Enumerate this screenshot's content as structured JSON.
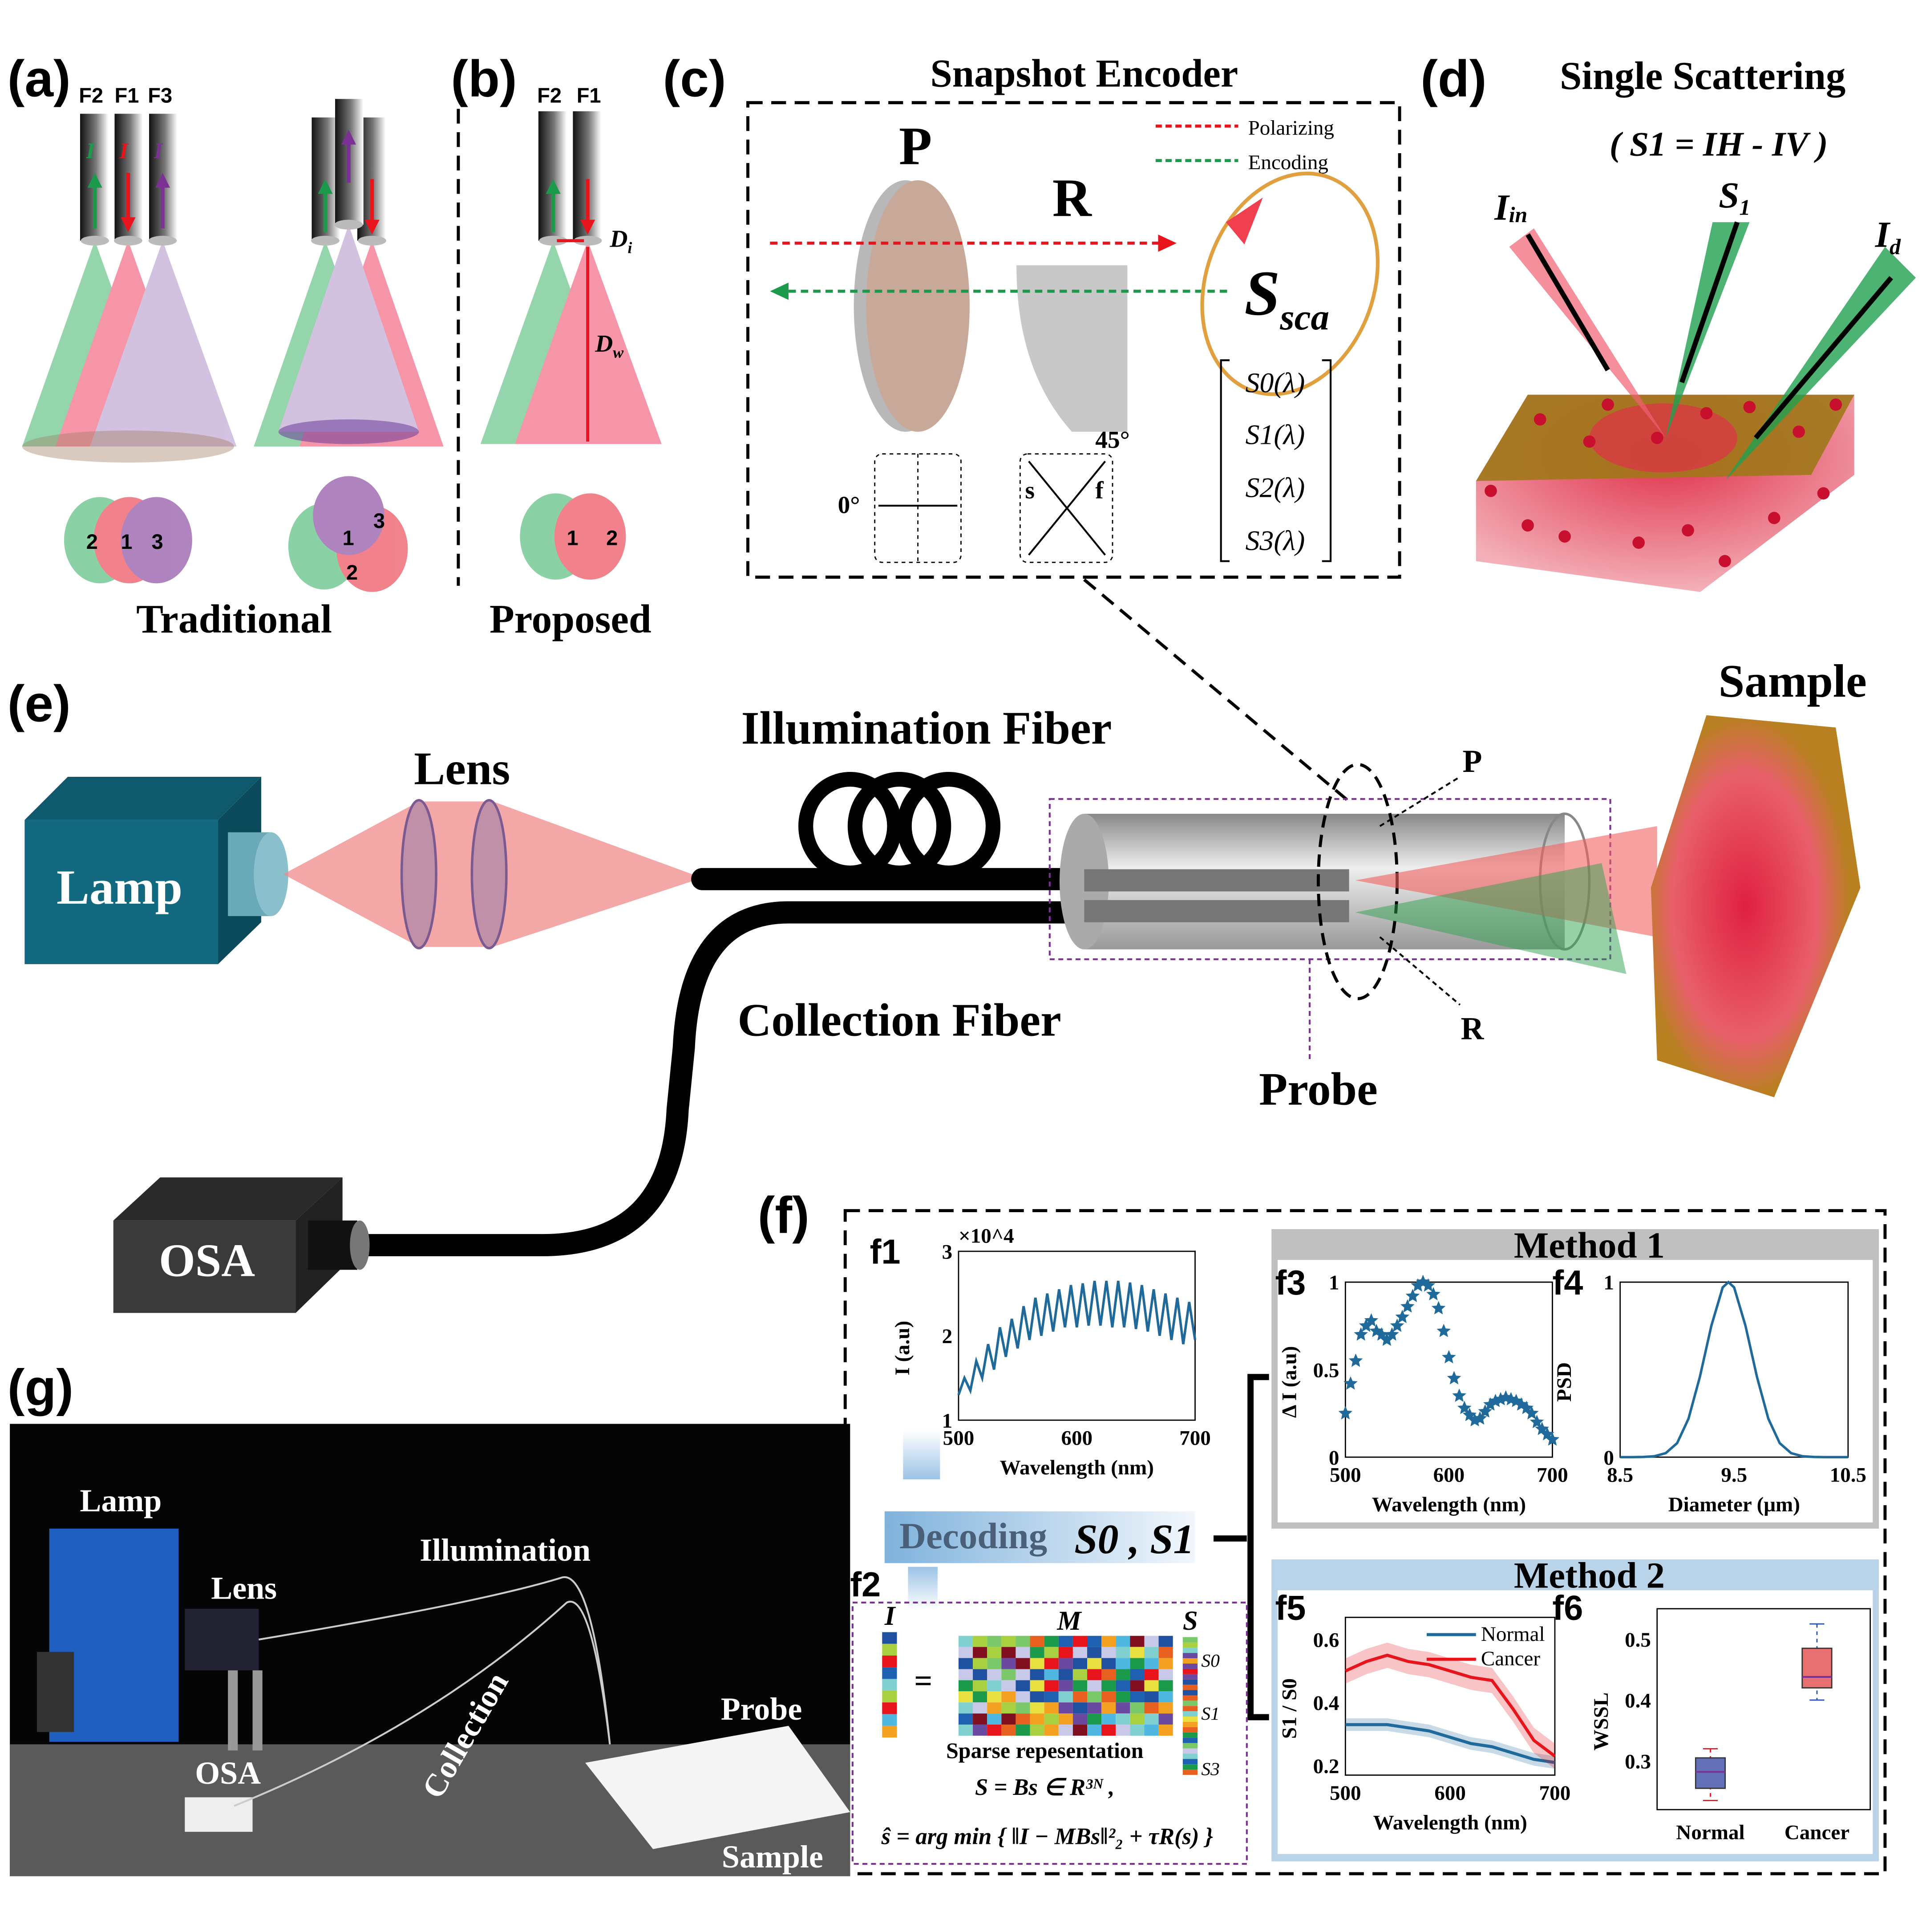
{
  "panels": {
    "a": {
      "label": "(a)",
      "fibers": [
        "F2",
        "F1",
        "F3"
      ],
      "i_par": "I",
      "i_par_sub": "//",
      "i_perp_sub": "⊥",
      "venn1": [
        "2",
        "1",
        "3"
      ],
      "venn2": [
        "1",
        "3",
        "2"
      ],
      "caption": "Traditional"
    },
    "b": {
      "label": "(b)",
      "fibers": [
        "F2",
        "F1"
      ],
      "i_m": "I",
      "i_m_sub": "m",
      "i_par_sub": "//",
      "d_i": "D",
      "d_i_sub": "i",
      "d_w": "D",
      "d_w_sub": "w",
      "venn": [
        "1",
        "2"
      ],
      "caption": "Proposed"
    },
    "c": {
      "label": "(c)",
      "title": "Snapshot Encoder",
      "p": "P",
      "r": "R",
      "legend": [
        {
          "label": "Polarizing",
          "color": "#e8141c"
        },
        {
          "label": "Encoding",
          "color": "#1a9a4a"
        }
      ],
      "s_sca": "S",
      "s_sca_sub": "sca",
      "stokes": [
        "S0(λ)",
        "S1(λ)",
        "S2(λ)",
        "S3(λ)"
      ],
      "angle_p": "0°",
      "angle_r": "45°",
      "axis_s": "s",
      "axis_f": "f"
    },
    "d": {
      "label": "(d)",
      "title": "Single Scattering",
      "formula": "( S1 = IH - IV )",
      "i_in": "I",
      "i_in_sub": "in",
      "s1": "S",
      "s1_sub": "1",
      "i_d": "I",
      "i_d_sub": "d"
    },
    "e": {
      "label": "(e)",
      "lamp": "Lamp",
      "lens": "Lens",
      "illumination_fiber": "Illumination Fiber",
      "collection_fiber": "Collection Fiber",
      "probe": "Probe",
      "sample": "Sample",
      "osa": "OSA",
      "p": "P",
      "r": "R"
    },
    "f": {
      "label": "(f)",
      "f1": "f1",
      "f2": "f2",
      "f3": "f3",
      "f4": "f4",
      "f5": "f5",
      "f6": "f6",
      "decoding": "Decoding",
      "decoding_s": "S0 , S1",
      "method1": "Method 1",
      "method2": "Method 2",
      "f2_I": "I",
      "f2_M": "M",
      "f2_S": "S",
      "f2_eq": "=",
      "f2_s_labels": [
        "S0",
        "S1",
        "S3"
      ],
      "sparse": "Sparse repesentation",
      "eq1": "S = Bs ∈ R³ᴺ ,",
      "eq2": "ŝ = arg min { ‖I − MBs‖²₂ + τR(s) }"
    },
    "g": {
      "label": "(g)",
      "lamp": "Lamp",
      "lens": "Lens",
      "illumination": "Illumination",
      "collection": "Collection",
      "osa": "OSA",
      "probe": "Probe",
      "sample": "Sample"
    }
  },
  "colors": {
    "green": "#1a9a4a",
    "red": "#e8141c",
    "purple": "#7b3294",
    "line_blue": "#1f6a9a",
    "lamp_teal": "#136a80",
    "osa_gray": "#3a3a3a",
    "method1_bg": "#c0c0c0",
    "method2_bg": "#b9d3e8"
  },
  "chart_data": [
    {
      "id": "f1",
      "type": "line",
      "xlabel": "Wavelength (nm)",
      "ylabel": "I (a.u)",
      "y_multiplier": "×10^4",
      "xlim": [
        500,
        700
      ],
      "ylim": [
        1,
        3
      ],
      "xticks": [
        "500",
        "600",
        "700"
      ],
      "yticks": [
        "1",
        "2",
        "3"
      ],
      "x": [
        500,
        505,
        510,
        515,
        520,
        525,
        530,
        535,
        540,
        545,
        550,
        555,
        560,
        565,
        570,
        575,
        580,
        585,
        590,
        595,
        600,
        605,
        610,
        615,
        620,
        625,
        630,
        635,
        640,
        645,
        650,
        655,
        660,
        665,
        670,
        675,
        680,
        685,
        690,
        695,
        700
      ],
      "values": [
        1.3,
        1.5,
        1.35,
        1.7,
        1.5,
        1.9,
        1.6,
        2.1,
        1.75,
        2.2,
        1.85,
        2.35,
        1.95,
        2.45,
        2.0,
        2.5,
        2.05,
        2.55,
        2.1,
        2.6,
        2.1,
        2.62,
        2.12,
        2.65,
        2.12,
        2.65,
        2.1,
        2.65,
        2.1,
        2.63,
        2.08,
        2.6,
        2.05,
        2.55,
        2.0,
        2.5,
        1.95,
        2.45,
        1.9,
        2.4,
        1.95
      ]
    },
    {
      "id": "f3",
      "type": "scatter",
      "marker": "star",
      "xlabel": "Wavelength (nm)",
      "ylabel": "Δ I (a.u)",
      "xlim": [
        500,
        700
      ],
      "ylim": [
        0,
        1
      ],
      "xticks": [
        "500",
        "600",
        "700"
      ],
      "yticks": [
        "0",
        "0.5",
        "1"
      ],
      "x": [
        500,
        505,
        510,
        515,
        520,
        525,
        530,
        535,
        540,
        545,
        550,
        555,
        560,
        565,
        570,
        575,
        580,
        585,
        590,
        595,
        600,
        605,
        610,
        615,
        620,
        625,
        630,
        635,
        640,
        645,
        650,
        655,
        660,
        665,
        670,
        675,
        680,
        685,
        690,
        695,
        700
      ],
      "values": [
        0.25,
        0.42,
        0.55,
        0.7,
        0.75,
        0.78,
        0.72,
        0.7,
        0.67,
        0.7,
        0.75,
        0.8,
        0.86,
        0.92,
        0.98,
        1.0,
        0.98,
        0.93,
        0.85,
        0.72,
        0.57,
        0.45,
        0.35,
        0.28,
        0.24,
        0.21,
        0.22,
        0.26,
        0.3,
        0.32,
        0.33,
        0.34,
        0.33,
        0.32,
        0.3,
        0.28,
        0.25,
        0.2,
        0.16,
        0.13,
        0.1
      ]
    },
    {
      "id": "f4",
      "type": "line",
      "xlabel": "Diameter (μm)",
      "ylabel": "PSD",
      "xlim": [
        8.5,
        10.5
      ],
      "ylim": [
        0,
        1
      ],
      "xticks": [
        "8.5",
        "9.5",
        "10.5"
      ],
      "yticks": [
        "0",
        "1"
      ],
      "x": [
        8.5,
        8.6,
        8.7,
        8.8,
        8.9,
        9.0,
        9.1,
        9.2,
        9.3,
        9.4,
        9.45,
        9.5,
        9.6,
        9.7,
        9.8,
        9.9,
        10.0,
        10.1,
        10.2,
        10.3,
        10.4,
        10.5
      ],
      "values": [
        0,
        0,
        0.001,
        0.005,
        0.023,
        0.08,
        0.22,
        0.46,
        0.75,
        0.97,
        1.0,
        0.97,
        0.75,
        0.46,
        0.22,
        0.08,
        0.023,
        0.005,
        0.001,
        0,
        0,
        0
      ]
    },
    {
      "id": "f5",
      "type": "line",
      "xlabel": "Wavelength (nm)",
      "ylabel": "S1 / S0",
      "xlim": [
        500,
        700
      ],
      "ylim": [
        0.17,
        0.67
      ],
      "xticks": [
        "500",
        "600",
        "700"
      ],
      "yticks": [
        "0.2",
        "0.4",
        "0.6"
      ],
      "legend": "top-right",
      "x": [
        500,
        520,
        540,
        560,
        580,
        600,
        620,
        640,
        660,
        680,
        700
      ],
      "series": [
        {
          "name": "Normal",
          "color": "#1f6a9a",
          "values": [
            0.33,
            0.33,
            0.33,
            0.32,
            0.31,
            0.29,
            0.27,
            0.26,
            0.24,
            0.22,
            0.21
          ],
          "band": 0.02
        },
        {
          "name": "Cancer",
          "color": "#e8141c",
          "values": [
            0.5,
            0.53,
            0.55,
            0.53,
            0.52,
            0.5,
            0.48,
            0.47,
            0.38,
            0.28,
            0.23
          ],
          "band": 0.04
        }
      ]
    },
    {
      "id": "f6",
      "type": "box",
      "ylabel": "WSSL",
      "ylim": [
        0.22,
        0.55
      ],
      "yticks": [
        "0.3",
        "0.4",
        "0.5"
      ],
      "categories": [
        "Normal",
        "Cancer"
      ],
      "boxes": [
        {
          "category": "Normal",
          "min": 0.235,
          "q1": 0.255,
          "median": 0.282,
          "q3": 0.305,
          "max": 0.32,
          "color": "#6470b8"
        },
        {
          "category": "Cancer",
          "min": 0.4,
          "q1": 0.42,
          "median": 0.438,
          "q3": 0.485,
          "max": 0.525,
          "color": "#e87070"
        }
      ]
    }
  ]
}
